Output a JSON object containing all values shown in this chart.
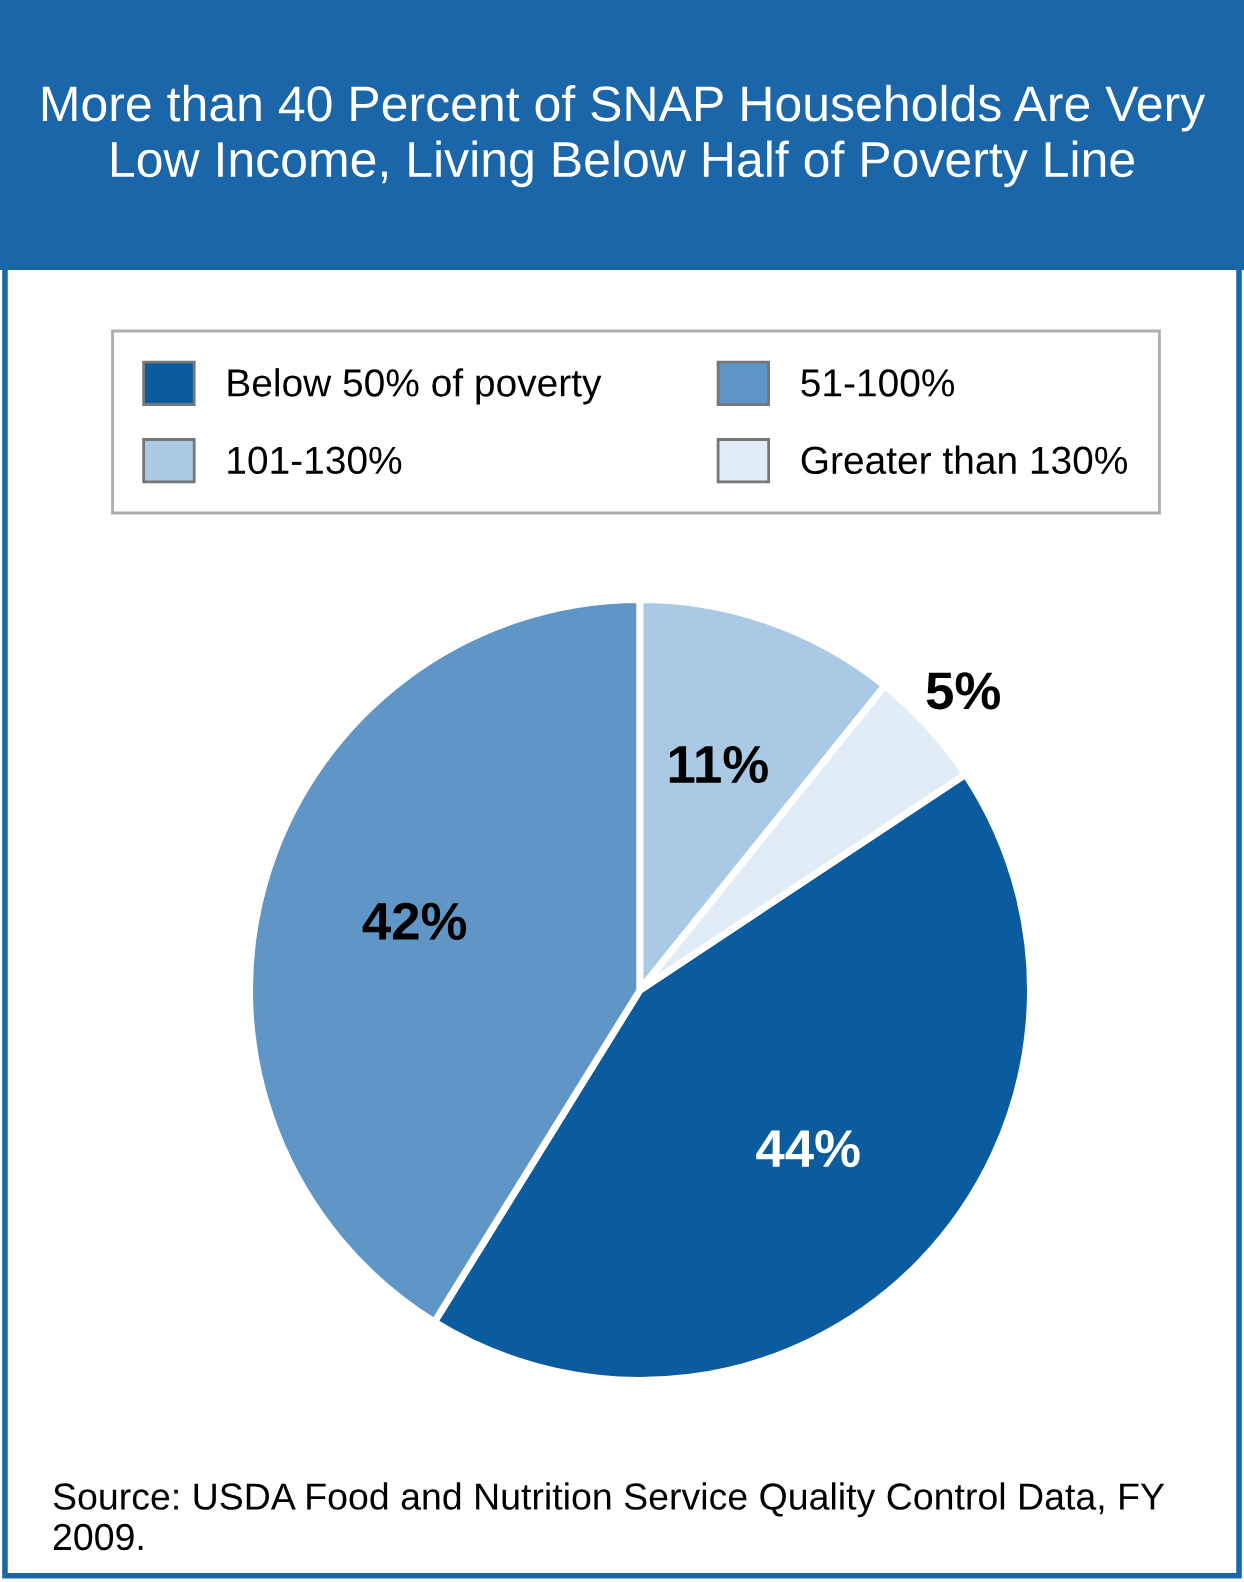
{
  "chart_data": {
    "type": "pie",
    "title": "More than 40 Percent of SNAP Households Are Very Low Income, Living Below Half of Poverty Line",
    "categories": [
      "Below 50% of poverty",
      "51-100%",
      "101-130%",
      "Greater than 130%"
    ],
    "values": [
      44,
      42,
      11,
      5
    ],
    "value_labels": [
      "44%",
      "42%",
      "11%",
      "5%"
    ],
    "colors": [
      "#0b5c9e",
      "#5f96c6",
      "#a9c9e4",
      "#e2ecf6"
    ],
    "legend": "top",
    "annotations": [
      "Source: USDA Food and Nutrition Service Quality Control Data, FY 2009."
    ]
  }
}
